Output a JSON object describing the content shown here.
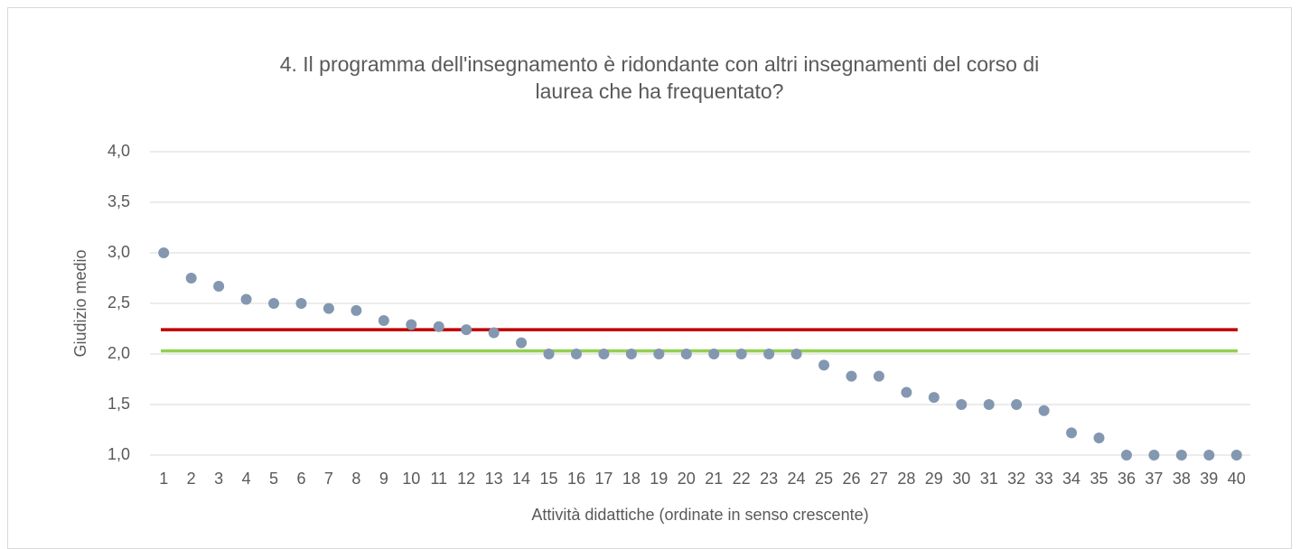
{
  "chart_data": {
    "type": "scatter",
    "title": "4. Il programma dell'insegnamento è ridondante con altri insegnamenti del corso di laurea che ha frequentato?",
    "xlabel": "Attività didattiche (ordinate in senso crescente)",
    "ylabel": "Giudizio medio",
    "categories": [
      "1",
      "2",
      "3",
      "4",
      "5",
      "6",
      "7",
      "8",
      "9",
      "10",
      "11",
      "12",
      "13",
      "14",
      "15",
      "16",
      "17",
      "18",
      "19",
      "20",
      "21",
      "22",
      "23",
      "24",
      "25",
      "26",
      "27",
      "28",
      "29",
      "30",
      "31",
      "32",
      "33",
      "34",
      "35",
      "36",
      "37",
      "38",
      "39",
      "40"
    ],
    "series": [
      {
        "color": "#8497b0",
        "values": [
          3.0,
          2.75,
          2.67,
          2.54,
          2.5,
          2.5,
          2.45,
          2.43,
          2.33,
          2.29,
          2.27,
          2.24,
          2.21,
          2.11,
          2.0,
          2.0,
          2.0,
          2.0,
          2.0,
          2.0,
          2.0,
          2.0,
          2.0,
          2.0,
          1.89,
          1.78,
          1.78,
          1.62,
          1.57,
          1.5,
          1.5,
          1.5,
          1.44,
          1.22,
          1.17,
          1.0,
          1.0,
          1.0,
          1.0,
          1.0
        ]
      }
    ],
    "hlines": [
      {
        "value": 2.24,
        "color": "#c00000"
      },
      {
        "value": 2.03,
        "color": "#92d050"
      }
    ],
    "ylim": [
      1.0,
      4.0
    ],
    "yticks": [
      {
        "value": 1.0,
        "label": "1,0"
      },
      {
        "value": 1.5,
        "label": "1,5"
      },
      {
        "value": 2.0,
        "label": "2,0"
      },
      {
        "value": 2.5,
        "label": "2,5"
      },
      {
        "value": 3.0,
        "label": "3,0"
      },
      {
        "value": 3.5,
        "label": "3,5"
      },
      {
        "value": 4.0,
        "label": "4,0"
      }
    ],
    "grid": true
  }
}
